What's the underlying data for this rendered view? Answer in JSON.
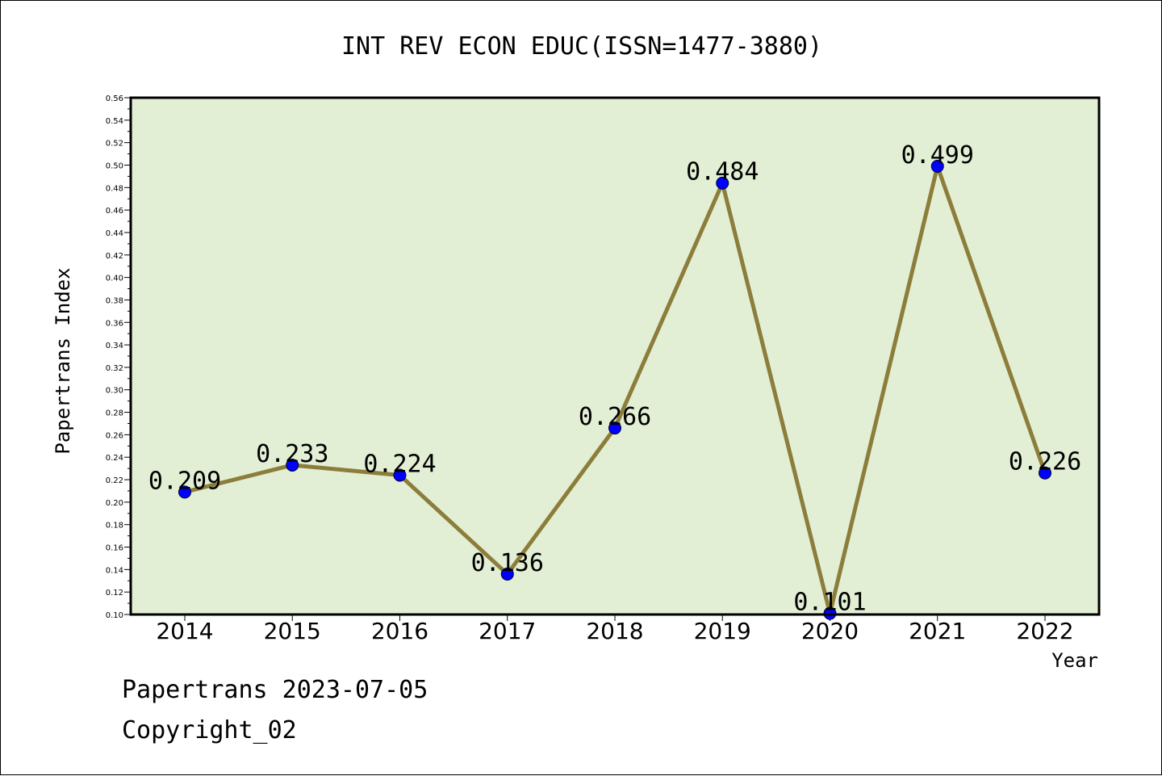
{
  "chart_data": {
    "type": "line",
    "title": "INT REV ECON EDUC(ISSN=1477-3880)",
    "xlabel": "Year",
    "ylabel": "Papertrans Index",
    "categories": [
      "2014",
      "2015",
      "2016",
      "2017",
      "2018",
      "2019",
      "2020",
      "2021",
      "2022"
    ],
    "series": [
      {
        "values": [
          0.209,
          0.233,
          0.224,
          0.136,
          0.266,
          0.484,
          0.101,
          0.499,
          0.226
        ],
        "data_labels": [
          "0.209",
          "0.233",
          "0.224",
          "0.136",
          "0.266",
          "0.484",
          "0.101",
          "0.499",
          "0.226"
        ]
      }
    ],
    "ylim": [
      0.1,
      0.56
    ],
    "yticks": [
      "0.10",
      "0.12",
      "0.14",
      "0.16",
      "0.18",
      "0.20",
      "0.22",
      "0.24",
      "0.26",
      "0.28",
      "0.30",
      "0.32",
      "0.34",
      "0.36",
      "0.38",
      "0.40",
      "0.42",
      "0.44",
      "0.46",
      "0.48",
      "0.50",
      "0.52",
      "0.54",
      "0.56"
    ],
    "grid": false,
    "colors": {
      "plot_background": "#e2efd5",
      "line": "#8c7d3a",
      "marker": "#0000ff"
    }
  },
  "footer": {
    "line1": "Papertrans 2023-07-05",
    "line2": "Copyright_02"
  }
}
